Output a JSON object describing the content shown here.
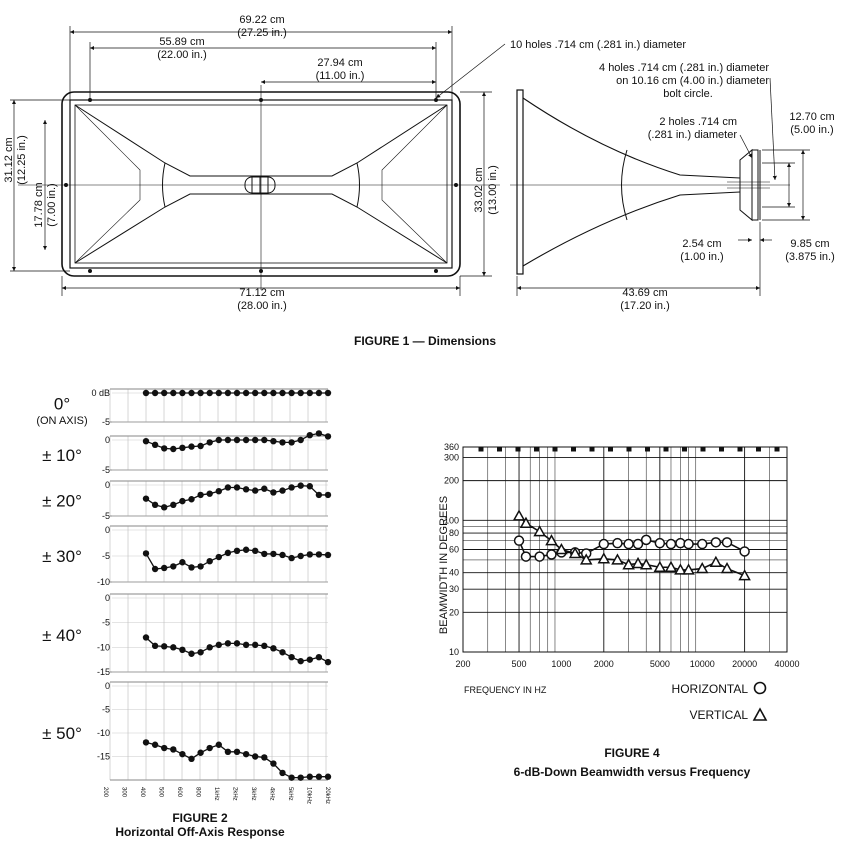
{
  "figure1": {
    "caption": "FIGURE 1 — Dimensions",
    "dims": {
      "w6922": {
        "cm": "69.22 cm",
        "in": "(27.25 in.)"
      },
      "w5589": {
        "cm": "55.89 cm",
        "in": "(22.00 in.)"
      },
      "w2794": {
        "cm": "27.94 cm",
        "in": "(11.00 in.)"
      },
      "h3112": {
        "cm": "31.12 cm",
        "in": "(12.25 in.)"
      },
      "h1778": {
        "cm": "17.78 cm",
        "in": "(7.00 in.)"
      },
      "h3302": {
        "cm": "33.02 cm",
        "in": "(13.00 in.)"
      },
      "w7112": {
        "cm": "71.12 cm",
        "in": "(28.00 in.)"
      },
      "d4369": {
        "cm": "43.69 cm",
        "in": "(17.20 in.)"
      },
      "t254": {
        "cm": "2.54 cm",
        "in": "(1.00 in.)"
      },
      "r985": {
        "cm": "9.85 cm",
        "in": "(3.875 in.)"
      },
      "r1270": {
        "cm": "12.70 cm",
        "in": "(5.00 in.)"
      }
    },
    "notes": {
      "ten_holes": "10 holes .714 cm (.281 in.) diameter",
      "four_holes_1": "4 holes .714 cm (.281 in.) diameter",
      "four_holes_2": "on 10.16 cm (4.00 in.) diameter",
      "four_holes_3": "bolt circle.",
      "two_holes_1": "2 holes .714 cm",
      "two_holes_2": "(.281 in.) diameter"
    }
  },
  "figure2": {
    "caption_1": "FIGURE 2",
    "caption_2": "Horizontal Off-Axis Response",
    "on_axis_note": "(ON AXIS)",
    "freq_labels": [
      "200",
      "300",
      "400",
      "500",
      "600",
      "800",
      "1kHz",
      "2kHz",
      "3kHz",
      "4kHz",
      "5kHz",
      "10kHz",
      "20kHz"
    ],
    "panels": [
      {
        "angle": "0°",
        "ticks": [
          "0 dB",
          "-5"
        ],
        "min": -5,
        "values": [
          0,
          0,
          0,
          0,
          0,
          0,
          0,
          0,
          0,
          0,
          0,
          0,
          0,
          0,
          0,
          0,
          0,
          0,
          0,
          0,
          0
        ]
      },
      {
        "angle": "± 10°",
        "ticks": [
          "0",
          "-5"
        ],
        "min": -5,
        "values": [
          -0.2,
          -0.8,
          -1.4,
          -1.5,
          -1.3,
          -1.1,
          -1.0,
          -0.4,
          0,
          0,
          0,
          0,
          0,
          0,
          -0.2,
          -0.4,
          -0.4,
          0,
          0.8,
          1.1,
          0.6
        ]
      },
      {
        "angle": "± 20°",
        "ticks": [
          "0",
          "-5"
        ],
        "min": -5,
        "values": [
          -2.2,
          -3.2,
          -3.6,
          -3.2,
          -2.6,
          -2.3,
          -1.6,
          -1.4,
          -1.0,
          -0.4,
          -0.4,
          -0.7,
          -0.9,
          -0.6,
          -1.2,
          -0.9,
          -0.4,
          -0.1,
          -0.2,
          -1.6,
          -1.6
        ]
      },
      {
        "angle": "± 30°",
        "ticks": [
          "0",
          "-5",
          "-10"
        ],
        "min": -10,
        "values": [
          -4.5,
          -7.5,
          -7.3,
          -7.0,
          -6.2,
          -7.2,
          -7.0,
          -6.0,
          -5.2,
          -4.4,
          -4.0,
          -3.8,
          -4.0,
          -4.6,
          -4.6,
          -4.8,
          -5.4,
          -5.0,
          -4.7,
          -4.7,
          -4.8
        ]
      },
      {
        "angle": "± 40°",
        "ticks": [
          "0",
          "-5",
          "-10",
          "-15"
        ],
        "min": -15,
        "values": [
          -8.0,
          -9.7,
          -9.8,
          -10.0,
          -10.5,
          -11.3,
          -11.0,
          -10.0,
          -9.5,
          -9.2,
          -9.2,
          -9.5,
          -9.5,
          -9.7,
          -10.2,
          -11.0,
          -12.0,
          -12.8,
          -12.5,
          -12.0,
          -13.0
        ]
      },
      {
        "angle": "± 50°",
        "ticks": [
          "0",
          "-5",
          "-10",
          "-15"
        ],
        "min": -20,
        "values": [
          -12.0,
          -12.5,
          -13.2,
          -13.5,
          -14.5,
          -15.5,
          -14.2,
          -13.2,
          -12.5,
          -14.0,
          -14.0,
          -14.5,
          -15.0,
          -15.2,
          -16.5,
          -18.5,
          -19.5,
          -19.5,
          -19.3,
          -19.3,
          -19.3
        ]
      }
    ]
  },
  "chart_data": {
    "type": "line",
    "title": "FIGURE 4",
    "subtitle": "6-dB-Down Beamwidth versus Frequency",
    "xlabel": "FREQUENCY IN HZ",
    "ylabel": "BEAMWIDTH IN DEGREES",
    "x_scale": "log",
    "y_scale": "log",
    "xlim": [
      200,
      40000
    ],
    "ylim": [
      10,
      360
    ],
    "x_ticks": [
      200,
      500,
      1000,
      2000,
      5000,
      10000,
      20000,
      40000
    ],
    "y_ticks": [
      10,
      20,
      30,
      40,
      60,
      80,
      100,
      200,
      300,
      360
    ],
    "series": [
      {
        "name": "HORIZONTAL",
        "marker": "circle",
        "x": [
          500,
          560,
          700,
          850,
          1000,
          1250,
          1500,
          2000,
          2500,
          3000,
          3500,
          4000,
          5000,
          6000,
          7000,
          8000,
          10000,
          12500,
          15000,
          20000
        ],
        "y": [
          70,
          53,
          53,
          55,
          57,
          57,
          56,
          66,
          67,
          66,
          66,
          71,
          67,
          66,
          67,
          66,
          66,
          68,
          68,
          58
        ]
      },
      {
        "name": "VERTICAL",
        "marker": "triangle",
        "x": [
          500,
          560,
          700,
          850,
          1000,
          1250,
          1500,
          2000,
          2500,
          3000,
          3500,
          4000,
          5000,
          6000,
          7000,
          8000,
          10000,
          12500,
          15000,
          20000
        ],
        "y": [
          108,
          95,
          82,
          70,
          60,
          56,
          50,
          51,
          50,
          46,
          47,
          46,
          44,
          44,
          42,
          42,
          43,
          48,
          43,
          38
        ]
      }
    ]
  }
}
